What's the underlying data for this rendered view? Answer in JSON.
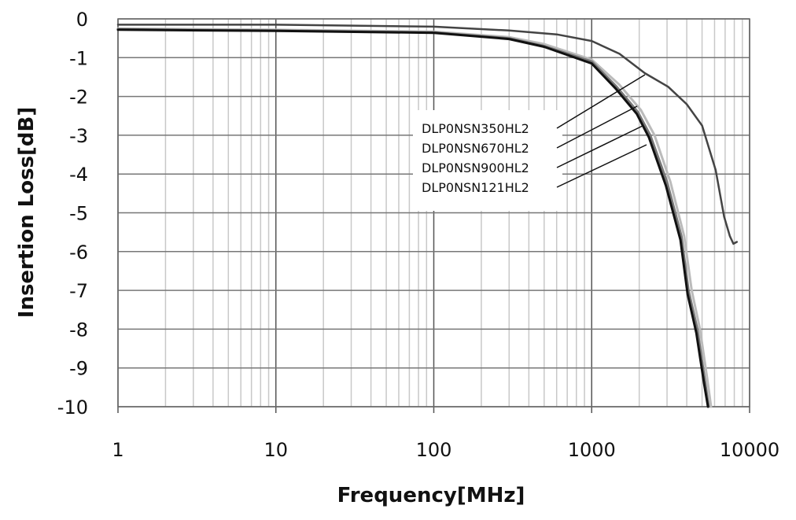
{
  "chart_data": {
    "type": "line",
    "title": "",
    "xlabel": "Frequency[MHz]",
    "ylabel": "Insertion Loss[dB]",
    "xscale": "log",
    "xlim": [
      1,
      10000
    ],
    "ylim": [
      -10,
      0
    ],
    "xticks": [
      "1",
      "10",
      "100",
      "1000",
      "10000"
    ],
    "yticks": [
      "0",
      "-1",
      "-2",
      "-3",
      "-4",
      "-5",
      "-6",
      "-7",
      "-8",
      "-9",
      "-10"
    ],
    "grid": true,
    "series": [
      {
        "name": "DLP0NSN350HL2",
        "color": "#444444",
        "width": 2.5,
        "x": [
          1,
          10,
          100,
          300,
          600,
          1000,
          1500,
          2170,
          3050,
          4000,
          5000,
          6100,
          6900,
          7500,
          7900,
          8300
        ],
        "y": [
          -0.15,
          -0.15,
          -0.2,
          -0.3,
          -0.4,
          -0.57,
          -0.9,
          -1.4,
          -1.75,
          -2.2,
          -2.75,
          -3.9,
          -5.1,
          -5.6,
          -5.8,
          -5.75
        ]
      },
      {
        "name": "DLP0NSN670HL2",
        "color": "#777777",
        "width": 3,
        "x": [
          1,
          10,
          100,
          300,
          500,
          1000,
          1440,
          1960,
          2350,
          3000,
          3700,
          4100,
          4670,
          5200,
          5500
        ],
        "y": [
          -0.27,
          -0.3,
          -0.35,
          -0.5,
          -0.7,
          -1.1,
          -1.75,
          -2.4,
          -3.0,
          -4.2,
          -5.6,
          -7.0,
          -8.0,
          -9.3,
          -10
        ]
      },
      {
        "name": "DLP0NSN900HL2",
        "color": "#111111",
        "width": 3,
        "x": [
          1,
          10,
          100,
          300,
          500,
          1000,
          1420,
          1930,
          2300,
          2950,
          3650,
          4050,
          4600,
          5150,
          5450
        ],
        "y": [
          -0.28,
          -0.31,
          -0.36,
          -0.52,
          -0.72,
          -1.15,
          -1.8,
          -2.45,
          -3.05,
          -4.3,
          -5.7,
          -7.1,
          -8.1,
          -9.4,
          -10
        ]
      },
      {
        "name": "DLP0NSN121HL2",
        "color": "#bbbbbb",
        "width": 3,
        "x": [
          1,
          10,
          100,
          300,
          500,
          1000,
          1500,
          2050,
          2500,
          3150,
          3850,
          4300,
          4850,
          5400,
          5700
        ],
        "y": [
          -0.25,
          -0.28,
          -0.33,
          -0.47,
          -0.65,
          -1.05,
          -1.7,
          -2.35,
          -3.0,
          -4.2,
          -5.6,
          -7.0,
          -8.0,
          -9.3,
          -10
        ]
      }
    ]
  }
}
